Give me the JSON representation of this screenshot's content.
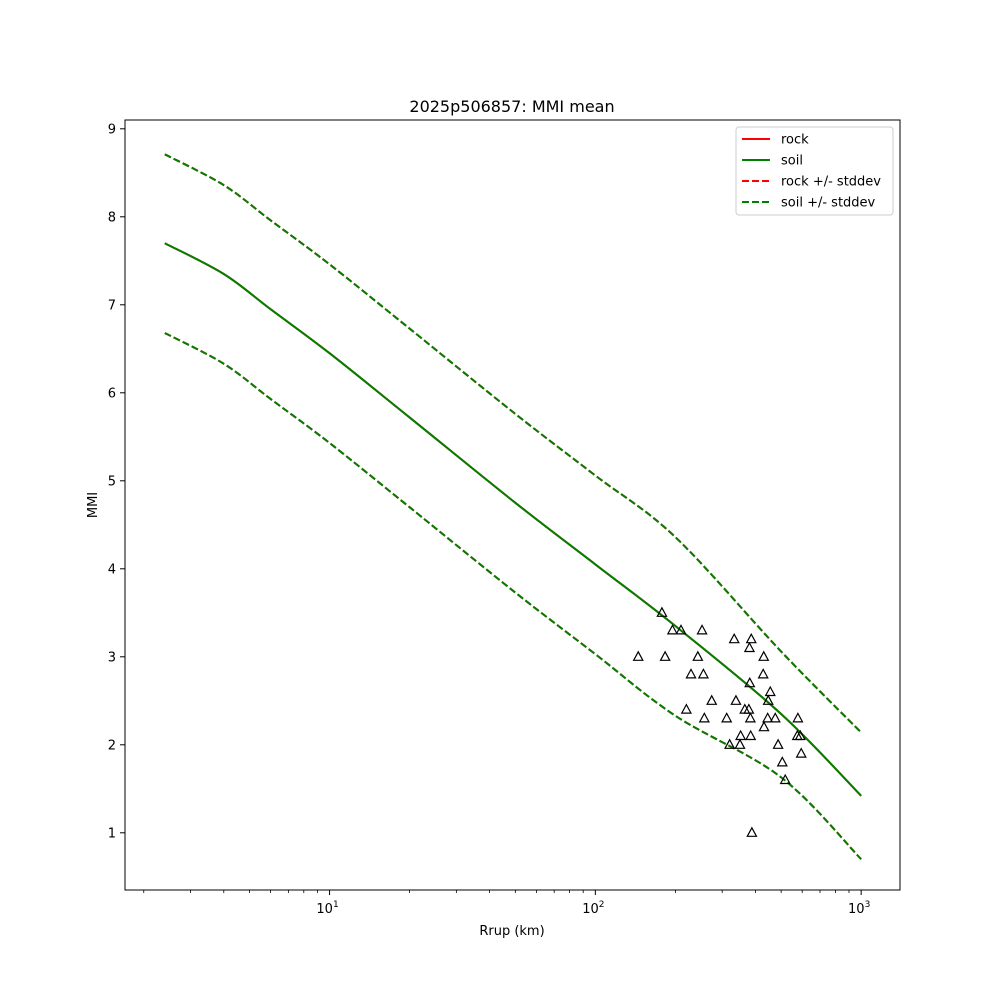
{
  "chart_data": {
    "type": "line",
    "title": "2025p506857: MMI mean",
    "xlabel": "Rrup (km)",
    "ylabel": "MMI",
    "xscale": "log",
    "xlim": [
      1.7,
      1400
    ],
    "ylim": [
      0.35,
      9.1
    ],
    "xticks": [
      {
        "value": 10,
        "base": "10",
        "exp": "1"
      },
      {
        "value": 100,
        "base": "10",
        "exp": "2"
      },
      {
        "value": 1000,
        "base": "10",
        "exp": "3"
      }
    ],
    "yticks": [
      1,
      2,
      3,
      4,
      5,
      6,
      7,
      8,
      9
    ],
    "grid": false,
    "legend_position": "top-right",
    "series": [
      {
        "name": "rock",
        "color": "#ff0000",
        "style": "solid",
        "x": [
          2.4,
          4,
          6,
          10,
          20,
          50,
          100,
          200,
          500,
          1000
        ],
        "y": [
          7.7,
          7.35,
          6.95,
          6.45,
          5.72,
          4.75,
          4.05,
          3.35,
          2.35,
          1.42
        ]
      },
      {
        "name": "soil",
        "color": "#008000",
        "style": "solid",
        "x": [
          2.4,
          4,
          6,
          10,
          20,
          50,
          100,
          200,
          500,
          1000
        ],
        "y": [
          7.7,
          7.35,
          6.95,
          6.45,
          5.72,
          4.75,
          4.05,
          3.35,
          2.35,
          1.42
        ]
      },
      {
        "name": "rock +/- stddev",
        "color": "#ff0000",
        "style": "dashed",
        "x": [
          2.4,
          4,
          6,
          10,
          20,
          50,
          100,
          200,
          500,
          1000
        ],
        "y_upper": [
          8.71,
          8.36,
          7.96,
          7.46,
          6.73,
          5.76,
          5.06,
          4.36,
          3.06,
          2.14
        ],
        "y_lower": [
          6.68,
          6.33,
          5.93,
          5.43,
          4.7,
          3.73,
          3.03,
          2.33,
          1.63,
          0.7
        ]
      },
      {
        "name": "soil +/- stddev",
        "color": "#008000",
        "style": "dashed",
        "x": [
          2.4,
          4,
          6,
          10,
          20,
          50,
          100,
          200,
          500,
          1000
        ],
        "y_upper": [
          8.71,
          8.36,
          7.96,
          7.46,
          6.73,
          5.76,
          5.06,
          4.36,
          3.06,
          2.14
        ],
        "y_lower": [
          6.68,
          6.33,
          5.93,
          5.43,
          4.7,
          3.73,
          3.03,
          2.33,
          1.63,
          0.7
        ]
      }
    ],
    "observations": {
      "marker": "triangle-open",
      "color": "#000000",
      "points": [
        [
          145,
          3.0
        ],
        [
          178,
          3.5
        ],
        [
          183,
          3.0
        ],
        [
          195,
          3.3
        ],
        [
          210,
          3.3
        ],
        [
          220,
          2.4
        ],
        [
          229,
          2.8
        ],
        [
          243,
          3.0
        ],
        [
          252,
          3.3
        ],
        [
          255,
          2.8
        ],
        [
          257,
          2.3
        ],
        [
          274,
          2.5
        ],
        [
          312,
          2.3
        ],
        [
          320,
          2.0
        ],
        [
          333,
          3.2
        ],
        [
          338,
          2.5
        ],
        [
          350,
          2.0
        ],
        [
          352,
          2.1
        ],
        [
          365,
          2.4
        ],
        [
          378,
          2.4
        ],
        [
          380,
          3.1
        ],
        [
          381,
          2.7
        ],
        [
          383,
          2.3
        ],
        [
          384,
          2.1
        ],
        [
          386,
          3.2
        ],
        [
          388,
          1.0
        ],
        [
          428,
          2.8
        ],
        [
          430,
          3.0
        ],
        [
          431,
          2.2
        ],
        [
          445,
          2.3
        ],
        [
          447,
          2.5
        ],
        [
          455,
          2.6
        ],
        [
          475,
          2.3
        ],
        [
          487,
          2.0
        ],
        [
          505,
          1.8
        ],
        [
          518,
          1.6
        ],
        [
          575,
          2.1
        ],
        [
          578,
          2.3
        ],
        [
          590,
          2.1
        ],
        [
          595,
          1.9
        ]
      ]
    }
  }
}
